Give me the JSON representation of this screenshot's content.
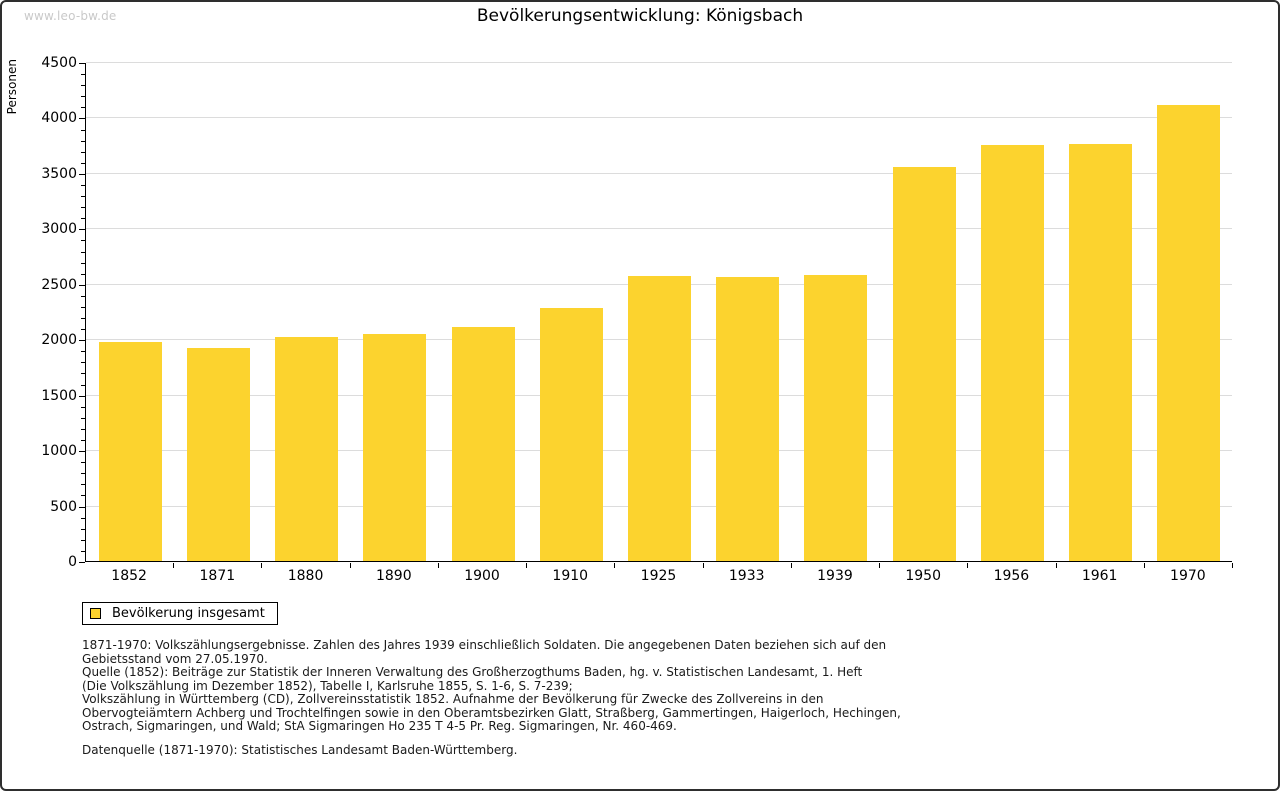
{
  "watermark": "www.leo-bw.de",
  "header": {
    "title": "Bevölkerungsentwicklung: Königsbach"
  },
  "chart_data": {
    "type": "bar",
    "title": "Bevölkerungsentwicklung: Königsbach",
    "xlabel": "",
    "ylabel": "Personen",
    "categories": [
      "1852",
      "1871",
      "1880",
      "1890",
      "1900",
      "1910",
      "1925",
      "1933",
      "1939",
      "1950",
      "1956",
      "1961",
      "1970"
    ],
    "values": [
      1975,
      1920,
      2020,
      2045,
      2110,
      2285,
      2570,
      2560,
      2580,
      3555,
      3750,
      3765,
      4110
    ],
    "series_name": "Bevölkerung insgesamt",
    "ylim": [
      0,
      4500
    ],
    "yticks": [
      0,
      500,
      1000,
      1500,
      2000,
      2500,
      3000,
      3500,
      4000,
      4500
    ],
    "y_minor_step": 100,
    "grid": true,
    "legend_position": "bottom-left",
    "bar_color": "#FCD32E",
    "grid_color": "#dcdcdc",
    "axis_color": "#000000"
  },
  "legend": {
    "label": "Bevölkerung insgesamt"
  },
  "notes": {
    "lines": [
      "1871-1970: Volkszählungsergebnisse. Zahlen des Jahres 1939 einschließlich Soldaten. Die angegebenen Daten beziehen sich auf den",
      "Gebietsstand vom 27.05.1970.",
      "Quelle (1852): Beiträge zur Statistik der Inneren Verwaltung des Großherzogthums Baden, hg. v. Statistischen Landesamt, 1. Heft",
      "(Die Volkszählung im Dezember 1852), Tabelle I, Karlsruhe 1855, S. 1-6, S. 7-239;",
      "Volkszählung in Württemberg (CD), Zollvereinsstatistik 1852. Aufnahme der Bevölkerung für Zwecke des Zollvereins in den",
      "Obervogteiämtern Achberg und Trochtelfingen sowie in den Oberamtsbezirken Glatt, Straßberg, Gammertingen, Haigerloch, Hechingen,",
      "Ostrach, Sigmaringen, und Wald; StA Sigmaringen Ho 235 T 4-5 Pr. Reg. Sigmaringen, Nr. 460-469."
    ]
  },
  "datasource": "Datenquelle (1871-1970): Statistisches Landesamt Baden-Württemberg."
}
